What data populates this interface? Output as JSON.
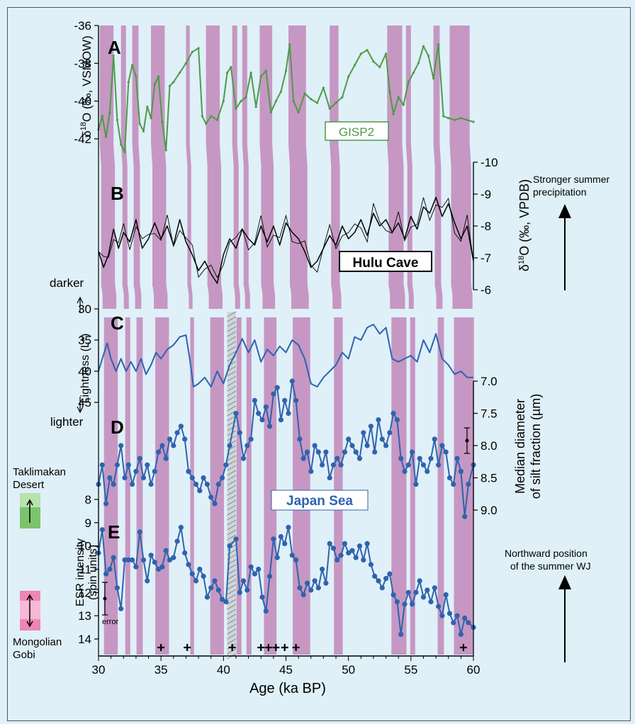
{
  "chart_data": {
    "type": "line",
    "xlabel": "Age (ka BP)",
    "x_ticks": [
      "30",
      "35",
      "40",
      "45",
      "50",
      "55",
      "60"
    ],
    "xlim": [
      30,
      60
    ],
    "minor_x_step": 1,
    "purple_bands": [
      [
        30.1,
        31.2
      ],
      [
        31.8,
        32.2
      ],
      [
        32.7,
        33.2
      ],
      [
        34.2,
        35.3
      ],
      [
        37.0,
        37.3
      ],
      [
        38.6,
        39.7
      ],
      [
        40.7,
        41.1
      ],
      [
        41.5,
        41.9
      ],
      [
        42.9,
        43.9
      ],
      [
        45.2,
        46.6
      ],
      [
        48.5,
        49.2
      ],
      [
        53.1,
        54.3
      ],
      [
        54.6,
        55.0
      ],
      [
        56.8,
        57.3
      ],
      [
        58.1,
        59.7
      ]
    ],
    "hatched_band": [
      40.3,
      41.0
    ],
    "crosses": [
      35.0,
      37.1,
      40.7,
      43.0,
      43.6,
      44.2,
      44.9,
      45.8,
      59.2
    ],
    "panels": [
      {
        "letter": "A",
        "ylabel": "δ18O (‰, VSMOW)",
        "yticks": [
          "-36",
          "-38",
          "-40",
          "-42"
        ],
        "series_name": "GISP2",
        "color": "#4e9a47",
        "x": [
          30,
          30.3,
          30.6,
          30.9,
          31.2,
          31.5,
          31.8,
          32.1,
          32.4,
          32.7,
          33.0,
          33.3,
          33.6,
          33.9,
          34.2,
          34.5,
          34.8,
          35.1,
          35.4,
          35.7,
          36.0,
          36.5,
          37.0,
          37.5,
          38.0,
          38.3,
          38.6,
          39.0,
          39.5,
          40.0,
          40.3,
          40.6,
          41.0,
          41.4,
          41.8,
          42.2,
          42.6,
          43.0,
          43.4,
          43.8,
          44.2,
          44.6,
          45.0,
          45.3,
          45.6,
          46.0,
          46.5,
          47.0,
          47.5,
          48.0,
          48.5,
          49.0,
          49.5,
          50.0,
          50.5,
          51.0,
          51.5,
          52.0,
          52.5,
          53.0,
          53.3,
          53.6,
          54.0,
          54.4,
          54.8,
          55.2,
          55.6,
          56.0,
          56.4,
          56.8,
          57.2,
          57.6,
          58.0,
          58.5,
          59.0,
          59.5,
          60.0
        ],
        "y": [
          -41.5,
          -40.8,
          -41.9,
          -40.6,
          -37.6,
          -41.0,
          -42.3,
          -42.7,
          -39.0,
          -38.1,
          -38.7,
          -41.2,
          -41.6,
          -40.3,
          -40.9,
          -39.1,
          -38.7,
          -41.1,
          -42.6,
          -39.2,
          -39.0,
          -38.5,
          -38.0,
          -37.4,
          -37.2,
          -40.8,
          -41.2,
          -40.8,
          -41.0,
          -40.0,
          -38.5,
          -38.2,
          -40.4,
          -40.0,
          -39.8,
          -38.5,
          -40.3,
          -38.7,
          -38.4,
          -40.6,
          -40.0,
          -39.5,
          -38.4,
          -37.0,
          -40.0,
          -40.6,
          -39.6,
          -39.9,
          -40.1,
          -39.3,
          -40.4,
          -40.1,
          -39.8,
          -38.7,
          -38.1,
          -37.5,
          -37.3,
          -37.9,
          -38.2,
          -37.5,
          -39.5,
          -40.7,
          -39.8,
          -40.2,
          -39.0,
          -38.5,
          -38.0,
          -37.1,
          -37.6,
          -38.8,
          -37.0,
          -40.8,
          -40.9,
          -41.0,
          -40.9,
          -41.0,
          -41.1
        ]
      },
      {
        "letter": "B",
        "ylabel": "δ18O (‰, VPDB)",
        "yticks": [
          "-10",
          "-9",
          "-8",
          "-7",
          "-6"
        ],
        "series_name": "Hulu Cave",
        "color": "#000000",
        "x": [
          30,
          30.4,
          30.8,
          31.2,
          31.6,
          32.0,
          32.5,
          33.0,
          33.5,
          34.0,
          34.5,
          35.0,
          35.5,
          36.0,
          36.5,
          37.0,
          37.5,
          38.0,
          38.5,
          39.0,
          39.5,
          40.0,
          40.5,
          41.0,
          41.5,
          42.0,
          42.5,
          43.0,
          43.5,
          44.0,
          44.5,
          45.0,
          45.5,
          46.0,
          46.5,
          47.0,
          47.5,
          48.0,
          48.5,
          49.0,
          49.5,
          50.0,
          50.5,
          51.0,
          51.5,
          52.0,
          52.5,
          53.0,
          53.5,
          54.0,
          54.5,
          55.0,
          55.5,
          56.0,
          56.5,
          57.0,
          57.5,
          58.0,
          58.5,
          59.0,
          59.5,
          60.0
        ],
        "y": [
          -7.2,
          -6.7,
          -7.1,
          -7.9,
          -7.3,
          -7.8,
          -7.5,
          -8.2,
          -7.3,
          -7.6,
          -8.1,
          -7.6,
          -8.0,
          -7.4,
          -8.2,
          -7.5,
          -7.1,
          -6.6,
          -6.9,
          -6.5,
          -6.2,
          -7.1,
          -7.6,
          -7.3,
          -7.9,
          -7.6,
          -7.4,
          -8.0,
          -7.5,
          -8.0,
          -7.4,
          -8.1,
          -7.8,
          -7.6,
          -7.2,
          -6.7,
          -6.9,
          -7.3,
          -7.7,
          -7.4,
          -8.0,
          -7.6,
          -7.8,
          -8.2,
          -7.7,
          -8.4,
          -8.0,
          -8.2,
          -7.8,
          -8.1,
          -7.6,
          -8.3,
          -7.9,
          -8.6,
          -8.4,
          -8.9,
          -8.3,
          -8.7,
          -8.1,
          -7.6,
          -8.0,
          -6.9
        ]
      },
      {
        "letter": "C",
        "ylabel": "Lightness (L*)",
        "yticks": [
          "30",
          "35",
          "40",
          "45"
        ],
        "color": "#2f63ad",
        "x": [
          30,
          30.3,
          30.7,
          31.0,
          31.4,
          31.8,
          32.2,
          32.6,
          33.0,
          33.4,
          33.8,
          34.2,
          34.6,
          35.0,
          35.5,
          36.0,
          36.5,
          37.0,
          37.3,
          37.6,
          38.0,
          38.5,
          39.0,
          39.5,
          40.0,
          40.5,
          41.0,
          41.5,
          42.0,
          42.5,
          43.0,
          43.5,
          44.0,
          44.5,
          45.0,
          45.5,
          46.0,
          46.5,
          47.0,
          47.5,
          48.0,
          48.5,
          49.0,
          49.5,
          50.0,
          50.5,
          51.0,
          51.5,
          52.0,
          52.5,
          53.0,
          53.5,
          54.0,
          54.5,
          55.0,
          55.5,
          56.0,
          56.5,
          57.0,
          57.5,
          58.0,
          58.5,
          59.0,
          59.5,
          60.0
        ],
        "y": [
          40,
          38,
          35.5,
          38,
          40,
          38,
          40,
          38.5,
          40,
          38,
          40.5,
          39,
          37,
          38,
          36.5,
          35.8,
          34.5,
          34.2,
          38,
          42.5,
          42,
          41,
          42.5,
          40,
          42,
          39,
          37,
          34.8,
          37,
          35,
          38.5,
          36.5,
          37.5,
          36,
          37,
          35,
          35.8,
          38,
          42,
          42.5,
          41,
          40,
          39,
          37,
          38,
          34.5,
          35,
          33,
          32.5,
          34,
          33,
          38,
          38.5,
          38,
          37.5,
          38.5,
          35,
          37,
          34,
          38,
          39,
          40.5,
          40,
          41,
          41
        ]
      },
      {
        "letter": "D",
        "ylabel": "Median diameter of silt fraction (µm)",
        "yticks": [
          "7.0",
          "7.5",
          "8.0",
          "8.5",
          "9.0"
        ],
        "color": "#2f63ad",
        "x": [
          30,
          30.3,
          30.6,
          30.9,
          31.2,
          31.5,
          31.8,
          32.1,
          32.4,
          32.7,
          33.0,
          33.3,
          33.6,
          33.9,
          34.2,
          34.5,
          34.8,
          35.1,
          35.4,
          35.7,
          36.0,
          36.3,
          36.6,
          36.9,
          37.2,
          37.5,
          37.8,
          38.1,
          38.4,
          38.7,
          39.0,
          39.3,
          39.6,
          39.9,
          40.2,
          40.5,
          41.0,
          41.3,
          41.6,
          41.9,
          42.2,
          42.5,
          42.8,
          43.1,
          43.4,
          43.7,
          44.0,
          44.3,
          44.6,
          44.9,
          45.2,
          45.5,
          45.8,
          46.1,
          46.4,
          46.7,
          47.0,
          47.3,
          47.6,
          47.9,
          48.2,
          48.5,
          48.8,
          49.1,
          49.4,
          49.7,
          50.0,
          50.3,
          50.6,
          50.9,
          51.2,
          51.5,
          51.8,
          52.1,
          52.4,
          52.7,
          53.0,
          53.3,
          53.6,
          53.9,
          54.2,
          54.5,
          54.8,
          55.1,
          55.4,
          55.7,
          56.0,
          56.3,
          56.6,
          56.9,
          57.2,
          57.5,
          57.8,
          58.1,
          58.4,
          58.7,
          59.0,
          59.3,
          59.6,
          60.0
        ],
        "y": [
          8.6,
          8.3,
          8.9,
          8.5,
          8.6,
          8.3,
          8.0,
          8.5,
          8.3,
          8.6,
          8.4,
          8.2,
          8.5,
          8.3,
          8.6,
          8.4,
          8.1,
          8.0,
          8.2,
          7.9,
          8.0,
          7.8,
          7.7,
          7.9,
          8.4,
          8.5,
          8.6,
          8.7,
          8.5,
          8.6,
          8.8,
          8.9,
          8.6,
          8.5,
          8.3,
          8.0,
          7.5,
          7.8,
          8.2,
          8.0,
          7.9,
          7.3,
          7.5,
          7.6,
          7.4,
          7.7,
          7.2,
          7.1,
          7.6,
          7.3,
          7.5,
          7.0,
          7.3,
          7.9,
          8.2,
          8.1,
          8.4,
          8.0,
          8.1,
          8.3,
          8.1,
          8.5,
          8.3,
          8.2,
          8.3,
          8.1,
          7.9,
          8.0,
          8.1,
          8.2,
          7.8,
          8.0,
          7.7,
          8.1,
          7.6,
          7.9,
          8.0,
          7.8,
          7.5,
          7.6,
          8.2,
          8.4,
          8.3,
          8.1,
          8.6,
          8.2,
          8.3,
          8.4,
          8.2,
          7.9,
          8.3,
          8.0,
          8.1,
          8.5,
          8.6,
          8.2,
          8.4,
          9.1,
          8.6,
          8.3
        ]
      },
      {
        "letter": "E",
        "ylabel": "ESR intensity (spin units)",
        "yticks": [
          "8",
          "9",
          "10",
          "11",
          "12",
          "13",
          "14"
        ],
        "color": "#2f63ad",
        "x": [
          30,
          30.3,
          30.6,
          30.9,
          31.2,
          31.5,
          31.8,
          32.1,
          32.4,
          32.7,
          33.0,
          33.3,
          33.6,
          33.9,
          34.2,
          34.5,
          34.8,
          35.1,
          35.4,
          35.7,
          36.0,
          36.3,
          36.6,
          36.9,
          37.2,
          37.5,
          37.8,
          38.1,
          38.4,
          38.7,
          39.0,
          39.3,
          39.6,
          39.9,
          40.2,
          40.5,
          41.0,
          41.3,
          41.6,
          41.9,
          42.2,
          42.5,
          42.8,
          43.1,
          43.4,
          43.7,
          44.0,
          44.3,
          44.6,
          44.9,
          45.2,
          45.5,
          45.8,
          46.1,
          46.4,
          46.7,
          47.0,
          47.3,
          47.6,
          47.9,
          48.2,
          48.5,
          48.8,
          49.1,
          49.4,
          49.7,
          50.0,
          50.3,
          50.6,
          50.9,
          51.2,
          51.5,
          51.8,
          52.1,
          52.4,
          52.7,
          53.0,
          53.3,
          53.6,
          53.9,
          54.2,
          54.5,
          54.8,
          55.1,
          55.4,
          55.7,
          56.0,
          56.3,
          56.6,
          56.9,
          57.2,
          57.5,
          57.8,
          58.1,
          58.4,
          58.7,
          59.0,
          59.3,
          59.6,
          60.0
        ],
        "y": [
          10.3,
          9.3,
          11.2,
          11.0,
          10.5,
          11.8,
          12.7,
          10.6,
          10.6,
          10.6,
          10.9,
          9.4,
          10.6,
          11.5,
          10.4,
          10.7,
          11.0,
          10.9,
          10.2,
          10.6,
          10.5,
          9.8,
          9.2,
          10.3,
          10.8,
          11.2,
          11.5,
          11.0,
          11.3,
          12.2,
          11.8,
          11.5,
          11.9,
          12.3,
          12.4,
          10.0,
          9.7,
          12.0,
          11.5,
          11.9,
          10.9,
          11.2,
          11.0,
          12.2,
          12.8,
          11.3,
          9.7,
          10.5,
          9.6,
          9.9,
          9.2,
          10.4,
          10.6,
          11.8,
          12.1,
          11.6,
          11.9,
          11.5,
          11.8,
          11.0,
          11.6,
          9.9,
          10.1,
          10.6,
          10.4,
          9.9,
          10.3,
          10.2,
          10.5,
          10.0,
          10.6,
          9.9,
          10.8,
          11.3,
          11.5,
          11.8,
          11.4,
          11.2,
          12.1,
          12.4,
          13.8,
          12.5,
          12.0,
          12.5,
          12.0,
          11.5,
          12.2,
          11.9,
          12.4,
          11.8,
          12.6,
          13.0,
          12.1,
          12.9,
          13.3,
          13.0,
          13.8,
          13.1,
          13.3,
          13.5
        ]
      }
    ]
  },
  "labels": {
    "gisp2_box": "GISP2",
    "hulu_box": "Hulu Cave",
    "japan_sea": "Japan Sea",
    "stronger_summer_1": "Stronger summer",
    "stronger_summer_2": "precipitation",
    "northward_1": "Northward position",
    "northward_2": "of the summer WJ",
    "darker": "darker",
    "lighter": "lighter",
    "lightness_axis": "Lightness (L*)",
    "taklimakan_1": "Taklimakan",
    "taklimakan_2": "Desert",
    "mongolian_1": "Mongolian",
    "mongolian_2": "Gobi",
    "error": "error",
    "vsmow_axis": "(‰, VSMOW)",
    "vpdb_axis": "(‰, VPDB)",
    "silt_1": "Median diameter",
    "silt_2": "of silt fraction (µm)",
    "esr_1": "ESR intensity",
    "esr_2": "(spin units)"
  },
  "colors": {
    "band": "#c697c3",
    "background": "#dff0f8",
    "green": "#4e9a47",
    "blue": "#2f63ad",
    "taklimakan_box": "#7cc46c",
    "gobi_box": "#ee86b5"
  }
}
